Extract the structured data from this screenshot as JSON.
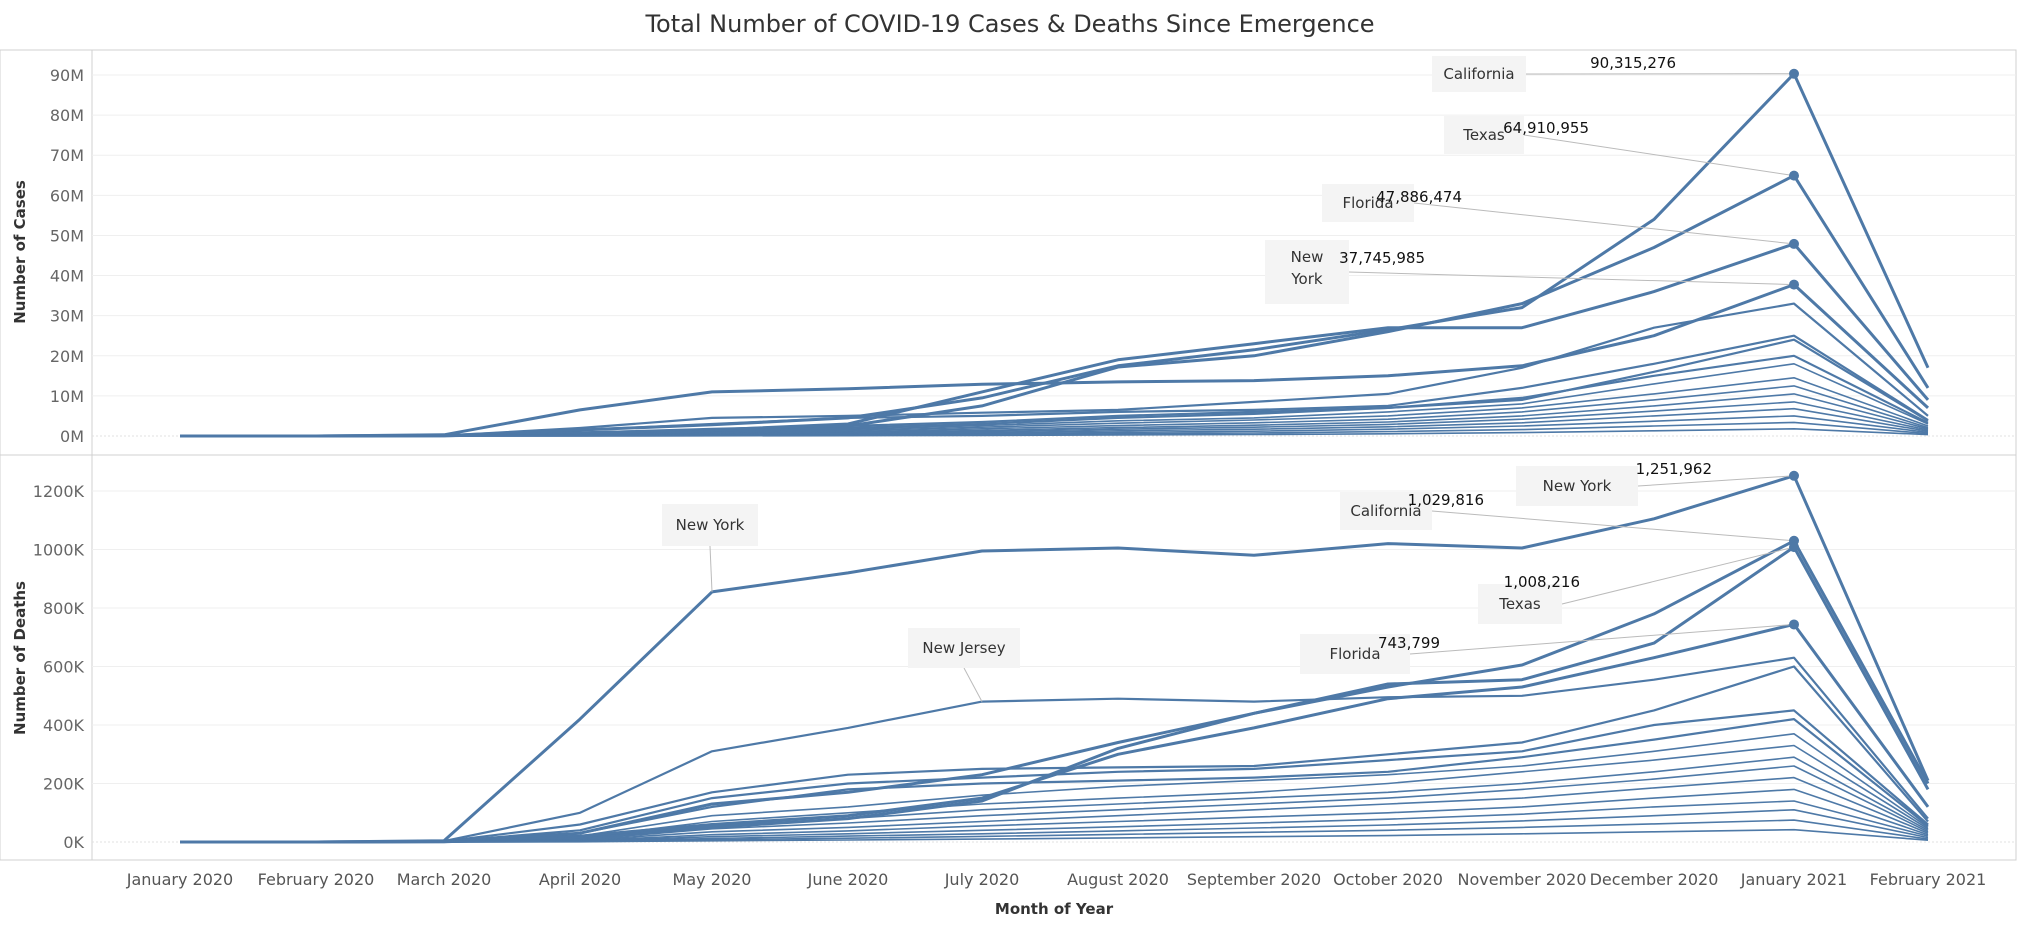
{
  "chart_data": {
    "type": "line",
    "title": "Total Number of COVID-19 Cases & Deaths Since Emergence",
    "xlabel": "Month of Year",
    "categories": [
      "January 2020",
      "February 2020",
      "March 2020",
      "April 2020",
      "May 2020",
      "June 2020",
      "July 2020",
      "August 2020",
      "September 2020",
      "October 2020",
      "November 2020",
      "December 2020",
      "January 2021",
      "February 2021"
    ],
    "color": "#4e79a7",
    "panels": [
      {
        "ylabel": "Number of Cases",
        "ylim": [
          0,
          95000000
        ],
        "ticks": [
          {
            "value": 0,
            "label": "0M"
          },
          {
            "value": 10000000,
            "label": "10M"
          },
          {
            "value": 20000000,
            "label": "20M"
          },
          {
            "value": 30000000,
            "label": "30M"
          },
          {
            "value": 40000000,
            "label": "40M"
          },
          {
            "value": 50000000,
            "label": "50M"
          },
          {
            "value": 60000000,
            "label": "60M"
          },
          {
            "value": 70000000,
            "label": "70M"
          },
          {
            "value": 80000000,
            "label": "80M"
          },
          {
            "value": 90000000,
            "label": "90M"
          }
        ],
        "series": [
          {
            "name": "California",
            "values": [
              0,
              0,
              100000,
              1500000,
              2800000,
              4500000,
              9500000,
              17500000,
              21500000,
              26500000,
              32000000,
              54000000,
              90315276,
              17000000
            ]
          },
          {
            "name": "Texas",
            "values": [
              0,
              0,
              50000,
              600000,
              1300000,
              2500000,
              7500000,
              17200000,
              20000000,
              26000000,
              33000000,
              47000000,
              64910955,
              12000000
            ]
          },
          {
            "name": "Florida",
            "values": [
              0,
              0,
              80000,
              800000,
              1500000,
              3000000,
              11000000,
              19000000,
              23000000,
              27000000,
              27000000,
              36000000,
              47886474,
              9000000
            ]
          },
          {
            "name": "New York",
            "values": [
              0,
              0,
              300000,
              6500000,
              11000000,
              11800000,
              12900000,
              13500000,
              13800000,
              15000000,
              17500000,
              25000000,
              37745985,
              7000000
            ]
          },
          {
            "values": [
              0,
              0,
              100000,
              2000000,
              4500000,
              5000000,
              5800000,
              6500000,
              8500000,
              10500000,
              17000000,
              27000000,
              33000000,
              5000000
            ]
          },
          {
            "values": [
              0,
              0,
              50000,
              1500000,
              3000000,
              4500000,
              5000000,
              6000000,
              6500000,
              7500000,
              12000000,
              18000000,
              25000000,
              4000000
            ]
          },
          {
            "values": [
              0,
              0,
              40000,
              800000,
              1800000,
              2500000,
              3500000,
              5000000,
              6000000,
              7000000,
              9000000,
              16000000,
              24000000,
              3800000
            ]
          },
          {
            "values": [
              0,
              0,
              30000,
              500000,
              1200000,
              2000000,
              3000000,
              4500000,
              5500000,
              7000000,
              9500000,
              15000000,
              20000000,
              3300000
            ]
          },
          {
            "values": [
              0,
              0,
              20000,
              400000,
              1000000,
              1600000,
              2600000,
              3800000,
              4500000,
              6000000,
              8000000,
              13000000,
              18000000,
              3000000
            ]
          },
          {
            "values": [
              0,
              0,
              15000,
              300000,
              800000,
              1300000,
              2200000,
              3200000,
              4000000,
              5000000,
              7000000,
              10500000,
              14500000,
              2500000
            ]
          },
          {
            "values": [
              0,
              0,
              10000,
              200000,
              600000,
              1000000,
              1800000,
              2600000,
              3300000,
              4200000,
              6000000,
              9000000,
              12500000,
              2100000
            ]
          },
          {
            "values": [
              0,
              0,
              8000,
              150000,
              500000,
              800000,
              1400000,
              2100000,
              2700000,
              3500000,
              5000000,
              7500000,
              10500000,
              1800000
            ]
          },
          {
            "values": [
              0,
              0,
              5000,
              100000,
              350000,
              600000,
              1100000,
              1700000,
              2200000,
              2900000,
              4200000,
              6200000,
              8500000,
              1500000
            ]
          },
          {
            "values": [
              0,
              0,
              3000,
              70000,
              250000,
              450000,
              800000,
              1300000,
              1700000,
              2300000,
              3300000,
              5000000,
              6800000,
              1200000
            ]
          },
          {
            "values": [
              0,
              0,
              2000,
              40000,
              150000,
              300000,
              550000,
              900000,
              1200000,
              1700000,
              2500000,
              3700000,
              5000000,
              900000
            ]
          },
          {
            "values": [
              0,
              0,
              1000,
              20000,
              80000,
              170000,
              330000,
              550000,
              750000,
              1100000,
              1600000,
              2500000,
              3400000,
              600000
            ]
          },
          {
            "values": [
              0,
              0,
              500,
              10000,
              40000,
              80000,
              160000,
              270000,
              380000,
              550000,
              850000,
              1300000,
              1800000,
              350000
            ]
          }
        ]
      },
      {
        "ylabel": "Number of Deaths",
        "ylim": [
          0,
          1300000
        ],
        "ticks": [
          {
            "value": 0,
            "label": "0K"
          },
          {
            "value": 200000,
            "label": "200K"
          },
          {
            "value": 400000,
            "label": "400K"
          },
          {
            "value": 600000,
            "label": "600K"
          },
          {
            "value": 800000,
            "label": "800K"
          },
          {
            "value": 1000000,
            "label": "1000K"
          },
          {
            "value": 1200000,
            "label": "1200K"
          }
        ],
        "series": [
          {
            "name": "New York",
            "values": [
              0,
              0,
              4000,
              420000,
              855000,
              920000,
              995000,
              1005000,
              980000,
              1020000,
              1005000,
              1105000,
              1251962,
              210000
            ]
          },
          {
            "name": "California",
            "values": [
              0,
              0,
              2000,
              30000,
              130000,
              170000,
              230000,
              340000,
              440000,
              530000,
              605000,
              780000,
              1029816,
              200000
            ]
          },
          {
            "name": "Texas",
            "values": [
              0,
              0,
              1000,
              15000,
              50000,
              80000,
              140000,
              320000,
              440000,
              540000,
              555000,
              680000,
              1008216,
              180000
            ]
          },
          {
            "name": "Florida",
            "values": [
              0,
              0,
              1500,
              20000,
              60000,
              90000,
              150000,
              300000,
              390000,
              490000,
              530000,
              630000,
              743799,
              120000
            ]
          },
          {
            "name": "New Jersey",
            "values": [
              0,
              0,
              3000,
              100000,
              310000,
              390000,
              480000,
              490000,
              480000,
              495000,
              500000,
              555000,
              630000,
              80000
            ]
          },
          {
            "values": [
              0,
              0,
              2000,
              60000,
              170000,
              230000,
              250000,
              255000,
              260000,
              300000,
              340000,
              450000,
              600000,
              70000
            ]
          },
          {
            "values": [
              0,
              0,
              1500,
              40000,
              150000,
              200000,
              220000,
              240000,
              250000,
              280000,
              310000,
              400000,
              450000,
              60000
            ]
          },
          {
            "values": [
              0,
              0,
              1000,
              30000,
              120000,
              180000,
              200000,
              210000,
              220000,
              240000,
              290000,
              350000,
              420000,
              55000
            ]
          },
          {
            "values": [
              0,
              0,
              800,
              20000,
              90000,
              120000,
              160000,
              190000,
              210000,
              230000,
              260000,
              310000,
              370000,
              50000
            ]
          },
          {
            "values": [
              0,
              0,
              600,
              15000,
              70000,
              100000,
              130000,
              150000,
              170000,
              200000,
              240000,
              280000,
              330000,
              45000
            ]
          },
          {
            "values": [
              0,
              0,
              500,
              10000,
              55000,
              80000,
              110000,
              130000,
              150000,
              170000,
              200000,
              240000,
              290000,
              40000
            ]
          },
          {
            "values": [
              0,
              0,
              400,
              8000,
              45000,
              65000,
              90000,
              110000,
              130000,
              150000,
              180000,
              215000,
              260000,
              35000
            ]
          },
          {
            "values": [
              0,
              0,
              300,
              6000,
              35000,
              50000,
              70000,
              90000,
              110000,
              130000,
              150000,
              185000,
              220000,
              30000
            ]
          },
          {
            "values": [
              0,
              0,
              200,
              4000,
              25000,
              38000,
              55000,
              70000,
              85000,
              100000,
              120000,
              150000,
              180000,
              25000
            ]
          },
          {
            "values": [
              0,
              0,
              150,
              3000,
              18000,
              28000,
              40000,
              52000,
              65000,
              78000,
              95000,
              120000,
              140000,
              20000
            ]
          },
          {
            "values": [
              0,
              0,
              100,
              2000,
              12000,
              20000,
              28000,
              38000,
              48000,
              58000,
              72000,
              90000,
              110000,
              15000
            ]
          },
          {
            "values": [
              0,
              0,
              60,
              1200,
              8000,
              13000,
              19000,
              26000,
              33000,
              40000,
              50000,
              62000,
              75000,
              10000
            ]
          },
          {
            "values": [
              0,
              0,
              30,
              600,
              4000,
              7000,
              10000,
              14000,
              18000,
              22000,
              28000,
              35000,
              42000,
              6000
            ]
          }
        ]
      }
    ],
    "annotations": [
      {
        "panel": 0,
        "label": "California",
        "value_label": "90,315,276",
        "series": 0
      },
      {
        "panel": 0,
        "label": "Texas",
        "value_label": "64,910,955",
        "series": 1
      },
      {
        "panel": 0,
        "label": "Florida",
        "value_label": "47,886,474",
        "series": 2
      },
      {
        "panel": 0,
        "label": "New York",
        "value_label": "37,745,985",
        "series": 3
      },
      {
        "panel": 1,
        "label": "New York",
        "value_label": "1,251,962",
        "series": 0
      },
      {
        "panel": 1,
        "label": "California",
        "value_label": "1,029,816",
        "series": 1
      },
      {
        "panel": 1,
        "label": "Texas",
        "value_label": "1,008,216",
        "series": 2
      },
      {
        "panel": 1,
        "label": "Florida",
        "value_label": "743,799",
        "series": 3
      },
      {
        "panel": 1,
        "label": "New York",
        "value_label": "",
        "series": 0,
        "month": 4
      },
      {
        "panel": 1,
        "label": "New Jersey",
        "value_label": "",
        "series": 4,
        "month": 6
      }
    ]
  }
}
